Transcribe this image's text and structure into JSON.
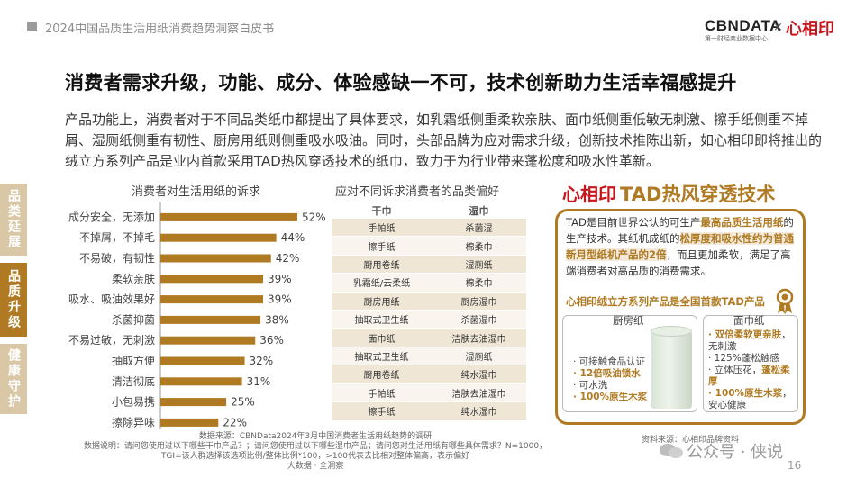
{
  "header": {
    "title": "2024中国品质生活用纸消费趋势洞察白皮书",
    "logo_cbn": "CBNDATA",
    "logo_cbn_sub": "第一财经商业数据中心",
    "logo_x": "×",
    "logo_xyy": "心相印"
  },
  "main_title": "消费者需求升级，功能、成分、体验感缺一不可，技术创新助力生活幸福感提升",
  "intro": "产品功能上，消费者对于不同品类纸巾都提出了具体要求，如乳霜纸侧重柔软亲肤、面巾纸侧重低敏无刺激、擦手纸侧重不掉屑、湿厕纸侧重有韧性、厨房用纸则侧重吸水吸油。同时，头部品牌为应对需求升级，创新技术推陈出新，如心相印即将推出的绒立方系列产品是业内首款采用TAD热风穿透技术的纸巾，致力于为行业带来蓬松度和吸水性革新。",
  "sidenav": [
    {
      "label": "品类延展"
    },
    {
      "label": "品质升级"
    },
    {
      "label": "健康守护"
    }
  ],
  "colors": {
    "accent": "#b07a22",
    "brand_red": "#c7171d",
    "bar": "#b07a22"
  },
  "chart_data": {
    "type": "bar",
    "orientation": "horizontal",
    "title": "消费者对生活用纸的诉求",
    "categories": [
      "成分安全，无添加",
      "不掉屑，不掉毛",
      "不易破，有韧性",
      "柔软亲肤",
      "吸水、吸油效果好",
      "杀菌抑菌",
      "不易过敏，无刺激",
      "抽取方便",
      "清洁彻底",
      "小包易携",
      "擦除异味"
    ],
    "values": [
      52,
      44,
      42,
      39,
      39,
      38,
      36,
      32,
      31,
      25,
      22
    ],
    "value_suffix": "%",
    "xlim": [
      0,
      52
    ],
    "grid": false
  },
  "preference_table": {
    "title": "应对不同诉求消费者的品类偏好",
    "columns": [
      "干巾",
      "湿巾"
    ],
    "rows": [
      [
        "手帕纸",
        "杀菌湿"
      ],
      [
        "擦手纸",
        "棉柔巾"
      ],
      [
        "厨用卷纸",
        "湿厕纸"
      ],
      [
        "乳霜纸/云柔纸",
        "棉柔巾"
      ],
      [
        "厨房用纸",
        "厨房湿巾"
      ],
      [
        "抽取式卫生纸",
        "杀菌湿巾"
      ],
      [
        "面巾纸",
        "洁肤去油湿巾"
      ],
      [
        "抽取式卫生纸",
        "湿厕纸"
      ],
      [
        "厨用卷纸",
        "纯水湿巾"
      ],
      [
        "手帕纸",
        "洁肤去油湿巾"
      ],
      [
        "擦手纸",
        "纯水湿巾"
      ]
    ]
  },
  "tad": {
    "logo": "心相印·",
    "title": "TAD热风穿透技术",
    "desc_1": "TAD是目前世界公认的可生产",
    "desc_2": "最高品质生活用纸",
    "desc_3": "的生产技术。其纸机成纸的",
    "desc_4": "松厚度和吸水性约为普通新月型纸机产品的2倍",
    "desc_5": "，而且更加柔软，满足了高端消费者对高品质的消费需求。",
    "subtitle": "心相印绒立方系列产品是全国首款TAD产品",
    "kitchen": {
      "name": "厨房纸",
      "features": [
        "· 可接触食品认证",
        "· 12倍吸油锁水",
        "· 可水洗",
        "· 100%原生木浆"
      ]
    },
    "facial": {
      "name": "面巾纸",
      "features": [
        "· 双倍柔软更亲肤",
        "，无刺激",
        "· 125%蓬松触感",
        "· 立体压花，",
        "蓬松柔厚",
        "· 100%原生木浆",
        "，安心健康"
      ]
    },
    "source": "资料来源：心相印品牌资料"
  },
  "footer": {
    "source_1": "数据来源：CBNData2024年3月中国消费者生活用纸趋势的调研",
    "source_2": "数据说明：请问您使用过以下哪些干巾产品？；请问您使用过以下哪些湿巾产品；请问您对生活用纸有哪些具体需求？N=1000，",
    "source_3": "TGI=该人群选择该选项比例/整体比例*100，>100代表去比相对整体偏高，表示偏好",
    "source_4": "大数据 · 全洞察",
    "watermark": "公众号 · 侠说",
    "page": "16"
  }
}
